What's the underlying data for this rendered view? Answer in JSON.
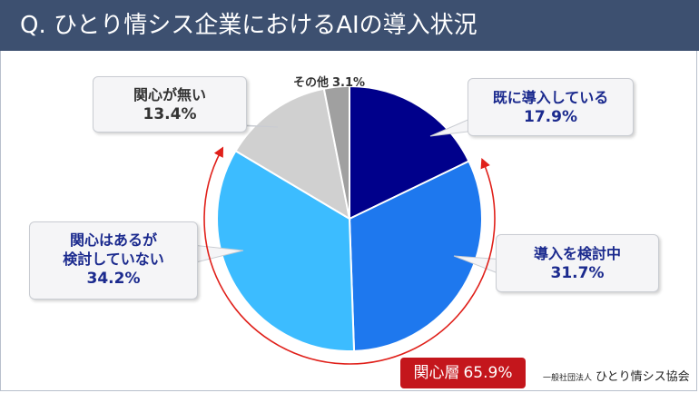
{
  "header": {
    "title": "Q. ひとり情シス企業におけるAIの導入状況"
  },
  "chart_data": {
    "type": "pie",
    "title": "Q. ひとり情シス企業におけるAIの導入状況",
    "start": "12 o'clock, clockwise",
    "slices": [
      {
        "label": "既に導入している",
        "value": 17.9,
        "display": "17.9%",
        "color": "#00008b"
      },
      {
        "label": "導入を検討中",
        "value": 31.7,
        "display": "31.7%",
        "color": "#1e78ee"
      },
      {
        "label": "関心はあるが検討していない",
        "label_lines": [
          "関心はあるが",
          "検討していない"
        ],
        "value": 34.2,
        "display": "34.2%",
        "color": "#3cbcff"
      },
      {
        "label": "関心が無い",
        "value": 13.4,
        "display": "13.4%",
        "color": "#d0d0d0"
      },
      {
        "label": "その他",
        "value": 3.1,
        "display": "3.1%",
        "color": "#a0a0a0"
      }
    ],
    "annotation": {
      "label": "関心層",
      "value": 65.9,
      "display": "65.9%",
      "covers": [
        "導入を検討中",
        "関心はあるが検討していない"
      ]
    }
  },
  "credit": {
    "org_type": "一般社団法人",
    "org_name": "ひとり情シス協会"
  }
}
